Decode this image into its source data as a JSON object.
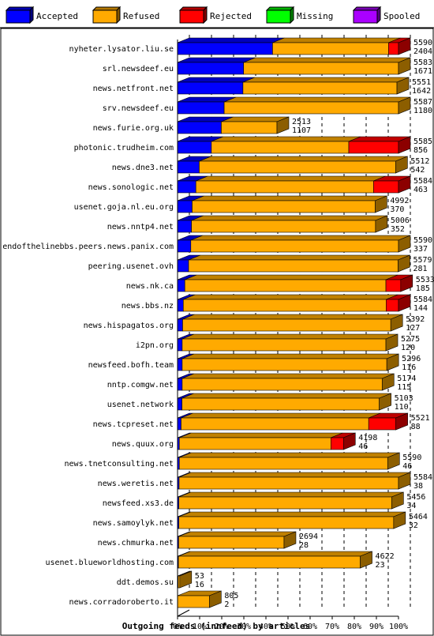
{
  "chart_data": {
    "type": "bar",
    "orientation": "horizontal",
    "stacked": true,
    "three_d": true,
    "title": "Outgoing feeds (innfeed) by articles",
    "xlim": [
      0,
      100
    ],
    "x_ticks": [
      "0%",
      "10%",
      "20%",
      "30%",
      "40%",
      "50%",
      "60%",
      "70%",
      "80%",
      "90%",
      "100%"
    ],
    "grid": "vertical dashed",
    "legend_position": "top",
    "legend": [
      {
        "name": "Accepted",
        "color": "#0000ff"
      },
      {
        "name": "Refused",
        "color": "#ffaa00"
      },
      {
        "name": "Rejected",
        "color": "#ff0000"
      },
      {
        "name": "Missing",
        "color": "#00ff00"
      },
      {
        "name": "Spooled",
        "color": "#aa00ff"
      }
    ],
    "rows": [
      {
        "label": "nyheter.lysator.liu.se",
        "total": "5590",
        "accepted": "2404",
        "pct": {
          "accepted": 43.0,
          "refused": 52.5,
          "rejected": 4.5,
          "spooled": 0
        }
      },
      {
        "label": "srl.newsdeef.eu",
        "total": "5583",
        "accepted": "1671",
        "pct": {
          "accepted": 29.9,
          "refused": 70.1,
          "rejected": 0,
          "spooled": 0
        }
      },
      {
        "label": "news.netfront.net",
        "total": "5551",
        "accepted": "1642",
        "pct": {
          "accepted": 29.6,
          "refused": 69.7,
          "rejected": 0,
          "spooled": 0
        }
      },
      {
        "label": "srv.newsdeef.eu",
        "total": "5587",
        "accepted": "1180",
        "pct": {
          "accepted": 21.1,
          "refused": 78.9,
          "rejected": 0,
          "spooled": 0
        }
      },
      {
        "label": "news.furie.org.uk",
        "total": "2513",
        "accepted": "1107",
        "pct": {
          "accepted": 19.8,
          "refused": 25.2,
          "rejected": 0,
          "spooled": 0
        }
      },
      {
        "label": "photonic.trudheim.com",
        "total": "5585",
        "accepted": "856",
        "pct": {
          "accepted": 15.3,
          "refused": 62.2,
          "rejected": 22.5,
          "spooled": 0
        }
      },
      {
        "label": "news.dne3.net",
        "total": "5512",
        "accepted": "542",
        "pct": {
          "accepted": 9.8,
          "refused": 88.9,
          "rejected": 0,
          "spooled": 0
        }
      },
      {
        "label": "news.sonologic.net",
        "total": "5584",
        "accepted": "463",
        "pct": {
          "accepted": 8.3,
          "refused": 80.4,
          "rejected": 11.3,
          "spooled": 0
        }
      },
      {
        "label": "usenet.goja.nl.eu.org",
        "total": "4992",
        "accepted": "370",
        "pct": {
          "accepted": 6.6,
          "refused": 82.8,
          "rejected": 0,
          "spooled": 0
        }
      },
      {
        "label": "news.nntp4.net",
        "total": "5006",
        "accepted": "352",
        "pct": {
          "accepted": 6.3,
          "refused": 83.3,
          "rejected": 0,
          "spooled": 0
        }
      },
      {
        "label": "endofthelinebbs.peers.news.panix.com",
        "total": "5590",
        "accepted": "337",
        "pct": {
          "accepted": 6.0,
          "refused": 94.0,
          "rejected": 0,
          "spooled": 0
        }
      },
      {
        "label": "peering.usenet.ovh",
        "total": "5579",
        "accepted": "281",
        "pct": {
          "accepted": 5.0,
          "refused": 94.8,
          "rejected": 0,
          "spooled": 0
        }
      },
      {
        "label": "news.nk.ca",
        "total": "5533",
        "accepted": "185",
        "pct": {
          "accepted": 3.3,
          "refused": 91.0,
          "rejected": 6.7,
          "spooled": 0
        }
      },
      {
        "label": "news.bbs.nz",
        "total": "5584",
        "accepted": "144",
        "pct": {
          "accepted": 2.6,
          "refused": 91.8,
          "rejected": 5.6,
          "spooled": 0
        }
      },
      {
        "label": "news.hispagatos.org",
        "total": "5392",
        "accepted": "127",
        "pct": {
          "accepted": 2.3,
          "refused": 94.2,
          "rejected": 0,
          "spooled": 0
        }
      },
      {
        "label": "i2pn.org",
        "total": "5275",
        "accepted": "120",
        "pct": {
          "accepted": 2.1,
          "refused": 92.2,
          "rejected": 0,
          "spooled": 0
        }
      },
      {
        "label": "newsfeed.bofh.team",
        "total": "5296",
        "accepted": "116",
        "pct": {
          "accepted": 2.1,
          "refused": 92.6,
          "rejected": 0,
          "spooled": 0
        }
      },
      {
        "label": "nntp.comgw.net",
        "total": "5174",
        "accepted": "115",
        "pct": {
          "accepted": 2.1,
          "refused": 90.5,
          "rejected": 0,
          "spooled": 0
        }
      },
      {
        "label": "usenet.network",
        "total": "5103",
        "accepted": "110",
        "pct": {
          "accepted": 2.0,
          "refused": 89.3,
          "rejected": 0,
          "spooled": 0
        }
      },
      {
        "label": "news.tcpreset.net",
        "total": "5521",
        "accepted": "88",
        "pct": {
          "accepted": 1.6,
          "refused": 84.9,
          "rejected": 12.3,
          "spooled": 0
        }
      },
      {
        "label": "news.quux.org",
        "total": "4198",
        "accepted": "46",
        "pct": {
          "accepted": 0.8,
          "refused": 68.6,
          "rejected": 5.7,
          "spooled": 0
        }
      },
      {
        "label": "news.tnetconsulting.net",
        "total": "5590",
        "accepted": "46",
        "pct": {
          "accepted": 0.8,
          "refused": 94.3,
          "rejected": 0,
          "spooled": 0
        }
      },
      {
        "label": "news.weretis.net",
        "total": "5584",
        "accepted": "38",
        "pct": {
          "accepted": 0.7,
          "refused": 99.3,
          "rejected": 0,
          "spooled": 0
        }
      },
      {
        "label": "newsfeed.xs3.de",
        "total": "5456",
        "accepted": "34",
        "pct": {
          "accepted": 0.6,
          "refused": 96.3,
          "rejected": 0,
          "spooled": 0
        }
      },
      {
        "label": "news.samoylyk.net",
        "total": "5464",
        "accepted": "32",
        "pct": {
          "accepted": 0.6,
          "refused": 97.2,
          "rejected": 0,
          "spooled": 0
        }
      },
      {
        "label": "news.chmurka.net",
        "total": "2694",
        "accepted": "28",
        "pct": {
          "accepted": 0.5,
          "refused": 47.7,
          "rejected": 0,
          "spooled": 0
        }
      },
      {
        "label": "usenet.blueworldhosting.com",
        "total": "4622",
        "accepted": "23",
        "pct": {
          "accepted": 0.4,
          "refused": 82.3,
          "rejected": 0,
          "spooled": 0
        }
      },
      {
        "label": "ddt.demos.su",
        "total": "53",
        "accepted": "16",
        "pct": {
          "accepted": 0.3,
          "refused": 0.7,
          "rejected": 0,
          "spooled": 0
        }
      },
      {
        "label": "news.corradoroberto.it",
        "total": "805",
        "accepted": "2",
        "pct": {
          "accepted": 0,
          "refused": 14.4,
          "rejected": 0,
          "spooled": 0
        }
      }
    ]
  }
}
